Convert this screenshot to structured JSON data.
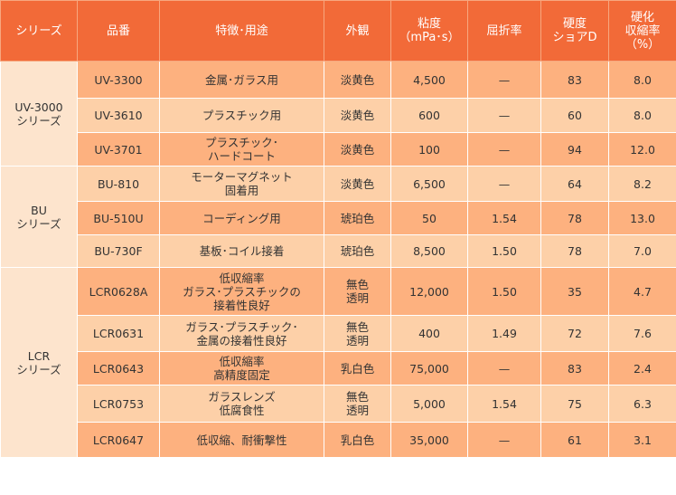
{
  "header": {
    "series": "シリーズ",
    "product": "品番",
    "feature": "特徴･用途",
    "appearance": "外観",
    "viscosity": "粘度\n（mPa･s）",
    "refractive": "屈折率",
    "hardness": "硬度\nショアD",
    "shrinkage": "硬化\n収縮率\n（%）"
  },
  "groups": [
    {
      "series": "UV-3000\nシリーズ",
      "rows": [
        {
          "product": "UV-3300",
          "feature": "金属･ガラス用",
          "appearance": "淡黄色",
          "viscosity": "4,500",
          "refractive": "—",
          "hardness": "83",
          "shrinkage": "8.0"
        },
        {
          "product": "UV-3610",
          "feature": "プラスチック用",
          "appearance": "淡黄色",
          "viscosity": "600",
          "refractive": "—",
          "hardness": "60",
          "shrinkage": "8.0"
        },
        {
          "product": "UV-3701",
          "feature": "プラスチック･\nハードコート",
          "appearance": "淡黄色",
          "viscosity": "100",
          "refractive": "—",
          "hardness": "94",
          "shrinkage": "12.0"
        }
      ]
    },
    {
      "series": "BU\nシリーズ",
      "rows": [
        {
          "product": "BU-810",
          "feature": "モーターマグネット\n固着用",
          "appearance": "淡黄色",
          "viscosity": "6,500",
          "refractive": "—",
          "hardness": "64",
          "shrinkage": "8.2"
        },
        {
          "product": "BU-510U",
          "feature": "コーディング用",
          "appearance": "琥珀色",
          "viscosity": "50",
          "refractive": "1.54",
          "hardness": "78",
          "shrinkage": "13.0"
        },
        {
          "product": "BU-730F",
          "feature": "基板･コイル接着",
          "appearance": "琥珀色",
          "viscosity": "8,500",
          "refractive": "1.50",
          "hardness": "78",
          "shrinkage": "7.0"
        }
      ]
    },
    {
      "series": "LCR\nシリーズ",
      "rows": [
        {
          "product": "LCR0628A",
          "feature": "低収縮率\nガラス･プラスチックの\n接着性良好",
          "appearance": "無色\n透明",
          "viscosity": "12,000",
          "refractive": "1.50",
          "hardness": "35",
          "shrinkage": "4.7"
        },
        {
          "product": "LCR0631",
          "feature": "ガラス･プラスチック･\n金属の接着性良好",
          "appearance": "無色\n透明",
          "viscosity": "400",
          "refractive": "1.49",
          "hardness": "72",
          "shrinkage": "7.6"
        },
        {
          "product": "LCR0643",
          "feature": "低収縮率\n高精度固定",
          "appearance": "乳白色",
          "viscosity": "75,000",
          "refractive": "—",
          "hardness": "83",
          "shrinkage": "2.4"
        },
        {
          "product": "LCR0753",
          "feature": "ガラスレンズ\n低腐食性",
          "appearance": "無色\n透明",
          "viscosity": "5,000",
          "refractive": "1.54",
          "hardness": "75",
          "shrinkage": "6.3"
        },
        {
          "product": "LCR0647",
          "feature": "低収縮、耐衝撃性",
          "appearance": "乳白色",
          "viscosity": "35,000",
          "refractive": "—",
          "hardness": "61",
          "shrinkage": "3.1"
        }
      ]
    }
  ]
}
